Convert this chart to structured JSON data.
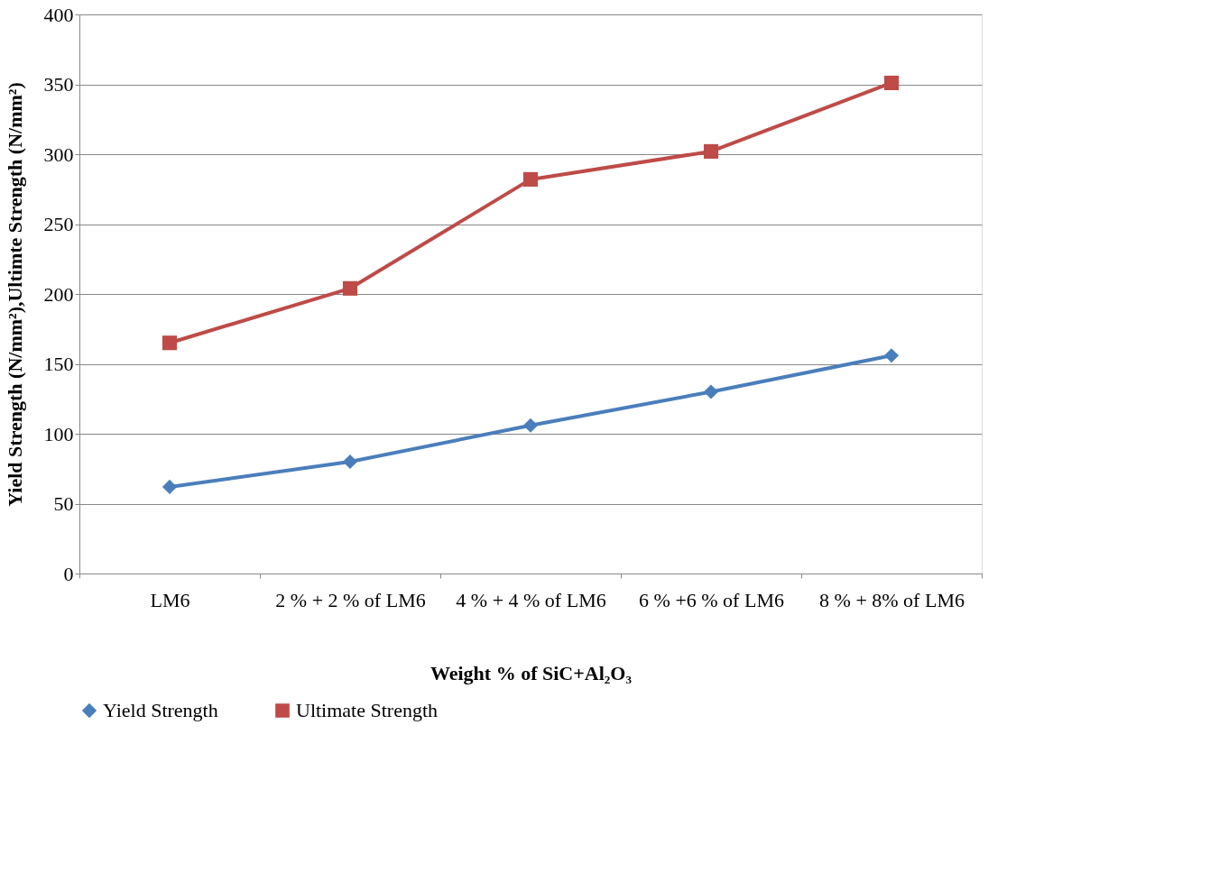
{
  "chart_data": {
    "type": "line",
    "xlabel": "Weight % of SiC+Al₂O₃",
    "ylabel": "Yield Strength (N/mm²),Ultimte Strength (N/mm²)",
    "categories": [
      "LM6",
      "2 % + 2 % of LM6",
      "4 % + 4 % of LM6",
      "6 % +6  % of LM6",
      "8 % + 8% of LM6"
    ],
    "series": [
      {
        "name": "Yield Strength",
        "color": "#4a7ebb",
        "marker": "diamond",
        "values": [
          62,
          80,
          106,
          130,
          156
        ]
      },
      {
        "name": "Ultimate Strength",
        "color": "#be4b48",
        "marker": "square",
        "values": [
          165,
          204,
          282,
          302,
          351
        ]
      }
    ],
    "ylim": [
      0,
      400
    ],
    "yticks": [
      0,
      50,
      100,
      150,
      200,
      250,
      300,
      350,
      400
    ],
    "grid": "y",
    "legend": "bottom",
    "line_style": "solid"
  }
}
